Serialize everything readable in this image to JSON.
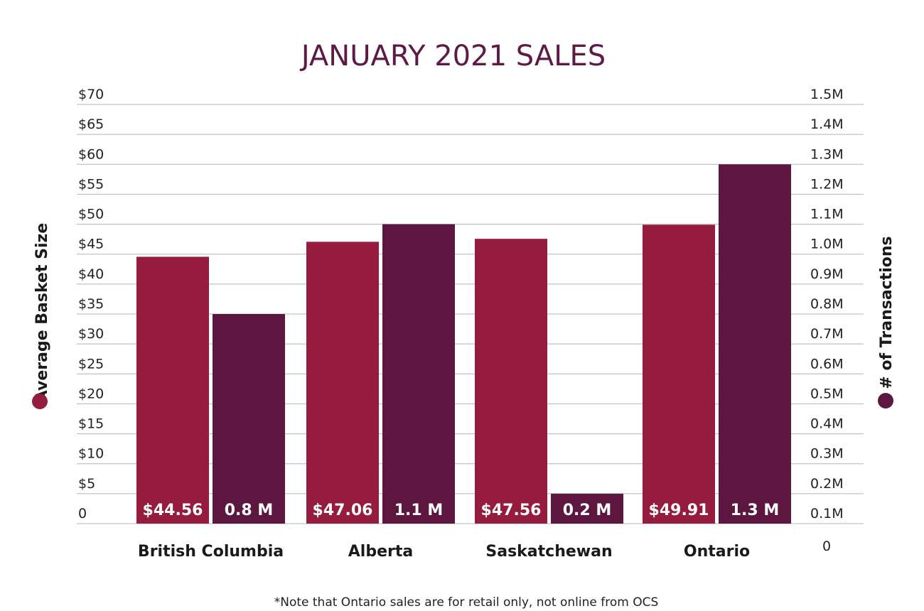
{
  "chart_data": {
    "type": "bar",
    "title": "JANUARY 2021 SALES",
    "categories": [
      "British Columbia",
      "Alberta",
      "Saskatchewan",
      "Ontario"
    ],
    "series": [
      {
        "name": "Average Basket Size",
        "axis": "left",
        "color": "#951b3f",
        "values": [
          44.56,
          47.06,
          47.56,
          49.91
        ],
        "labels": [
          "$44.56",
          "$47.06",
          "$47.56",
          "$49.91"
        ]
      },
      {
        "name": "# of Transactions",
        "axis": "right",
        "color": "#5c1640",
        "values": [
          0.8,
          1.1,
          0.2,
          1.3
        ],
        "labels": [
          "0.8 M",
          "1.1 M",
          "0.2 M",
          "1.3 M"
        ]
      }
    ],
    "ylabel": "Average Basket Size",
    "y2label": "# of Transactions",
    "ylim": [
      0,
      70
    ],
    "y2lim": [
      0.1,
      1.5
    ],
    "yticks": [
      "0",
      "$5",
      "$10",
      "$15",
      "$20",
      "$25",
      "$30",
      "$35",
      "$40",
      "$45",
      "$50",
      "$55",
      "$60",
      "$65",
      "$70"
    ],
    "y2ticks": [
      "0.1M",
      "0.2M",
      "0.3M",
      "0.4M",
      "0.5M",
      "0.6M",
      "0.7M",
      "0.8M",
      "0.9M",
      "1.0M",
      "1.1M",
      "1.2M",
      "1.3M",
      "1.4M",
      "1.5M"
    ],
    "y2_extra_tick": "0",
    "grid": true,
    "note": "*Note that Ontario sales are for retail only, not online from OCS"
  }
}
